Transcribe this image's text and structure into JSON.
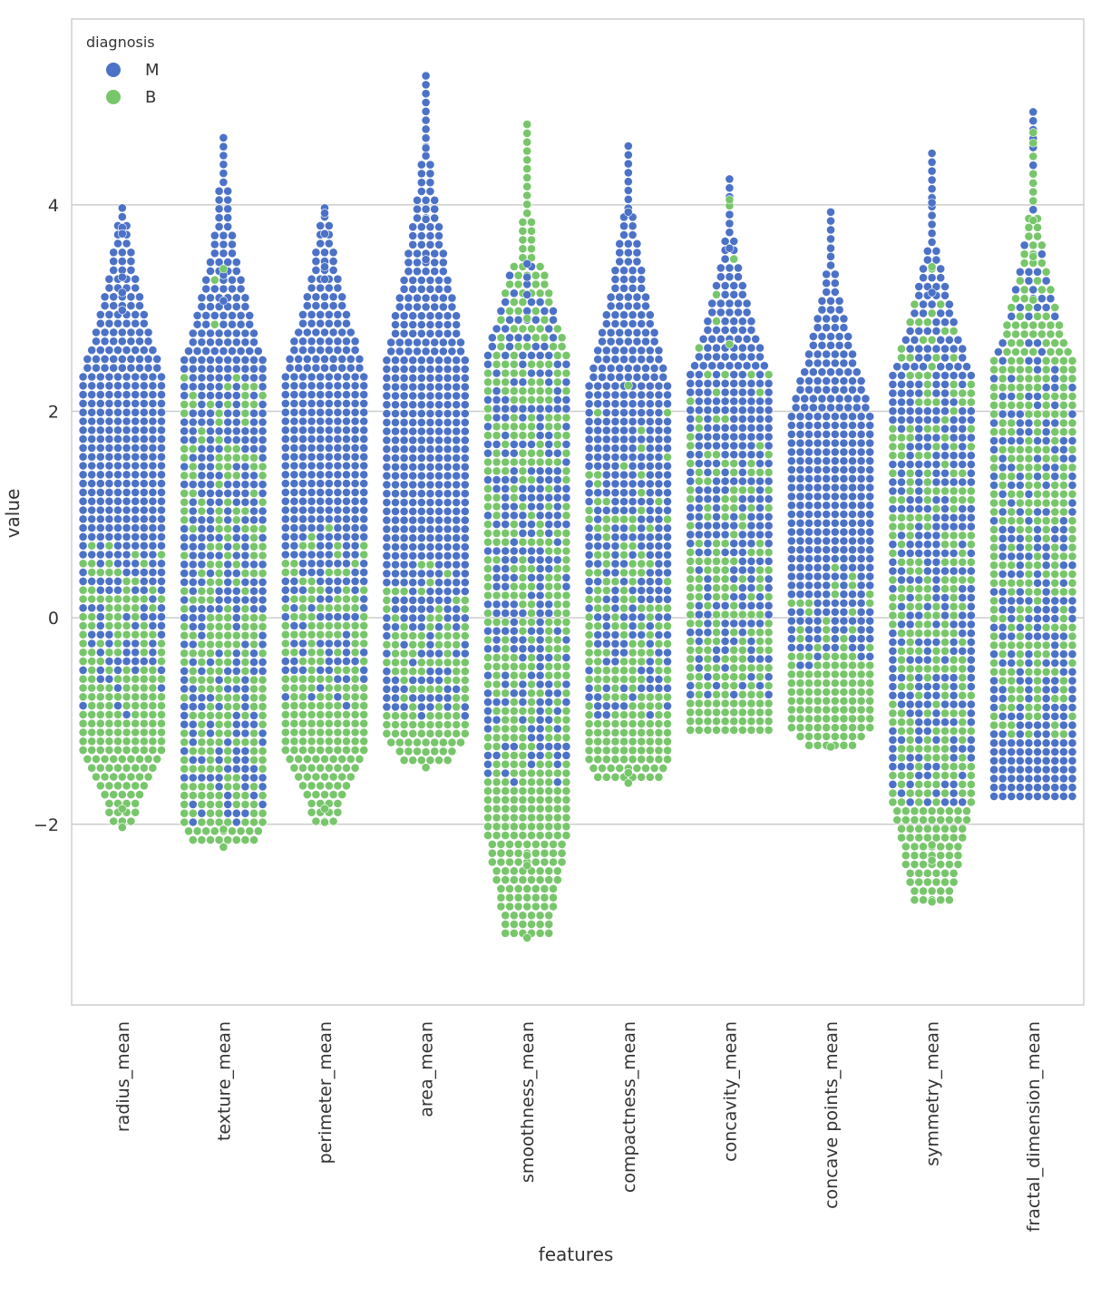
{
  "chart_data": {
    "type": "scatter",
    "subtype": "swarm",
    "title": "",
    "xlabel": "features",
    "ylabel": "value",
    "ylim": [
      -3.75,
      5.8
    ],
    "yticks": [
      4,
      2,
      0,
      -2
    ],
    "ytick_labels": [
      "4",
      "2",
      "0",
      "−2"
    ],
    "grid": "horizontal",
    "legend": {
      "title": "diagnosis",
      "placement": "top-left",
      "items": [
        {
          "label": "M",
          "color": "#4c72c7"
        },
        {
          "label": "B",
          "color": "#78c66b"
        }
      ]
    },
    "categories": [
      "radius_mean",
      "texture_mean",
      "perimeter_mean",
      "area_mean",
      "smoothness_mean",
      "compactness_mean",
      "concavity_mean",
      "concave points_mean",
      "symmetry_mean",
      "fractal_dimension_mean"
    ],
    "series": [
      {
        "name": "M",
        "color": "#4c72c7",
        "approx_range": [
          [
            -1.0,
            3.97
          ],
          [
            -2.05,
            4.65
          ],
          [
            -0.9,
            3.97
          ],
          [
            -1.0,
            5.25
          ],
          [
            -1.65,
            3.43
          ],
          [
            -0.95,
            4.57
          ],
          [
            -0.75,
            4.25
          ],
          [
            -0.5,
            3.93
          ],
          [
            -1.85,
            4.5
          ],
          [
            -1.8,
            4.9
          ]
        ],
        "approx_center": [
          1.2,
          0.6,
          1.25,
          1.1,
          0.5,
          1.0,
          1.0,
          1.0,
          0.2,
          -0.4
        ],
        "approx_outliers": [
          [
            3.97,
            3.78,
            3.72,
            3.3,
            3.15,
            2.98
          ],
          [
            4.65,
            3.32,
            3.07
          ],
          [
            3.97,
            3.92,
            3.72,
            3.4,
            3.28
          ],
          [
            5.25,
            5.25,
            4.55,
            3.86,
            3.47
          ],
          [
            3.43,
            3.3,
            3.13
          ],
          [
            4.57,
            3.93,
            3.45
          ],
          [
            4.25,
            4.25,
            3.58
          ],
          [
            3.93,
            3.67,
            3.58
          ],
          [
            4.5,
            4.02,
            3.15
          ],
          [
            4.9
          ]
        ]
      },
      {
        "name": "B",
        "color": "#78c66b",
        "approx_range": [
          [
            -2.03,
            0.85
          ],
          [
            -2.22,
            3.38
          ],
          [
            -1.98,
            0.95
          ],
          [
            -1.45,
            0.55
          ],
          [
            -3.1,
            4.78
          ],
          [
            -1.6,
            2.25
          ],
          [
            -1.1,
            4.05
          ],
          [
            -1.25,
            0.5
          ],
          [
            -2.75,
            3.4
          ],
          [
            -1.2,
            4.7
          ]
        ],
        "approx_center": [
          -0.65,
          -0.6,
          -0.65,
          -0.7,
          -0.3,
          -0.5,
          -0.5,
          -0.65,
          -0.4,
          0.4
        ],
        "approx_outliers": [
          [
            -1.85,
            -2.03
          ],
          [
            -2.05,
            -2.22,
            3.38
          ],
          [
            -1.85,
            -1.98
          ],
          [
            -1.3,
            -1.45
          ],
          [
            -2.3,
            -2.4,
            -3.1,
            4.78,
            2.9
          ],
          [
            -1.5,
            -1.6,
            2.25
          ],
          [
            4.05,
            2.65
          ],
          [
            -1.25
          ],
          [
            -2.2,
            -2.35,
            -2.75,
            3.4
          ],
          [
            4.7,
            4.6,
            4.3,
            3.85,
            3.5,
            3.08
          ]
        ]
      }
    ]
  }
}
